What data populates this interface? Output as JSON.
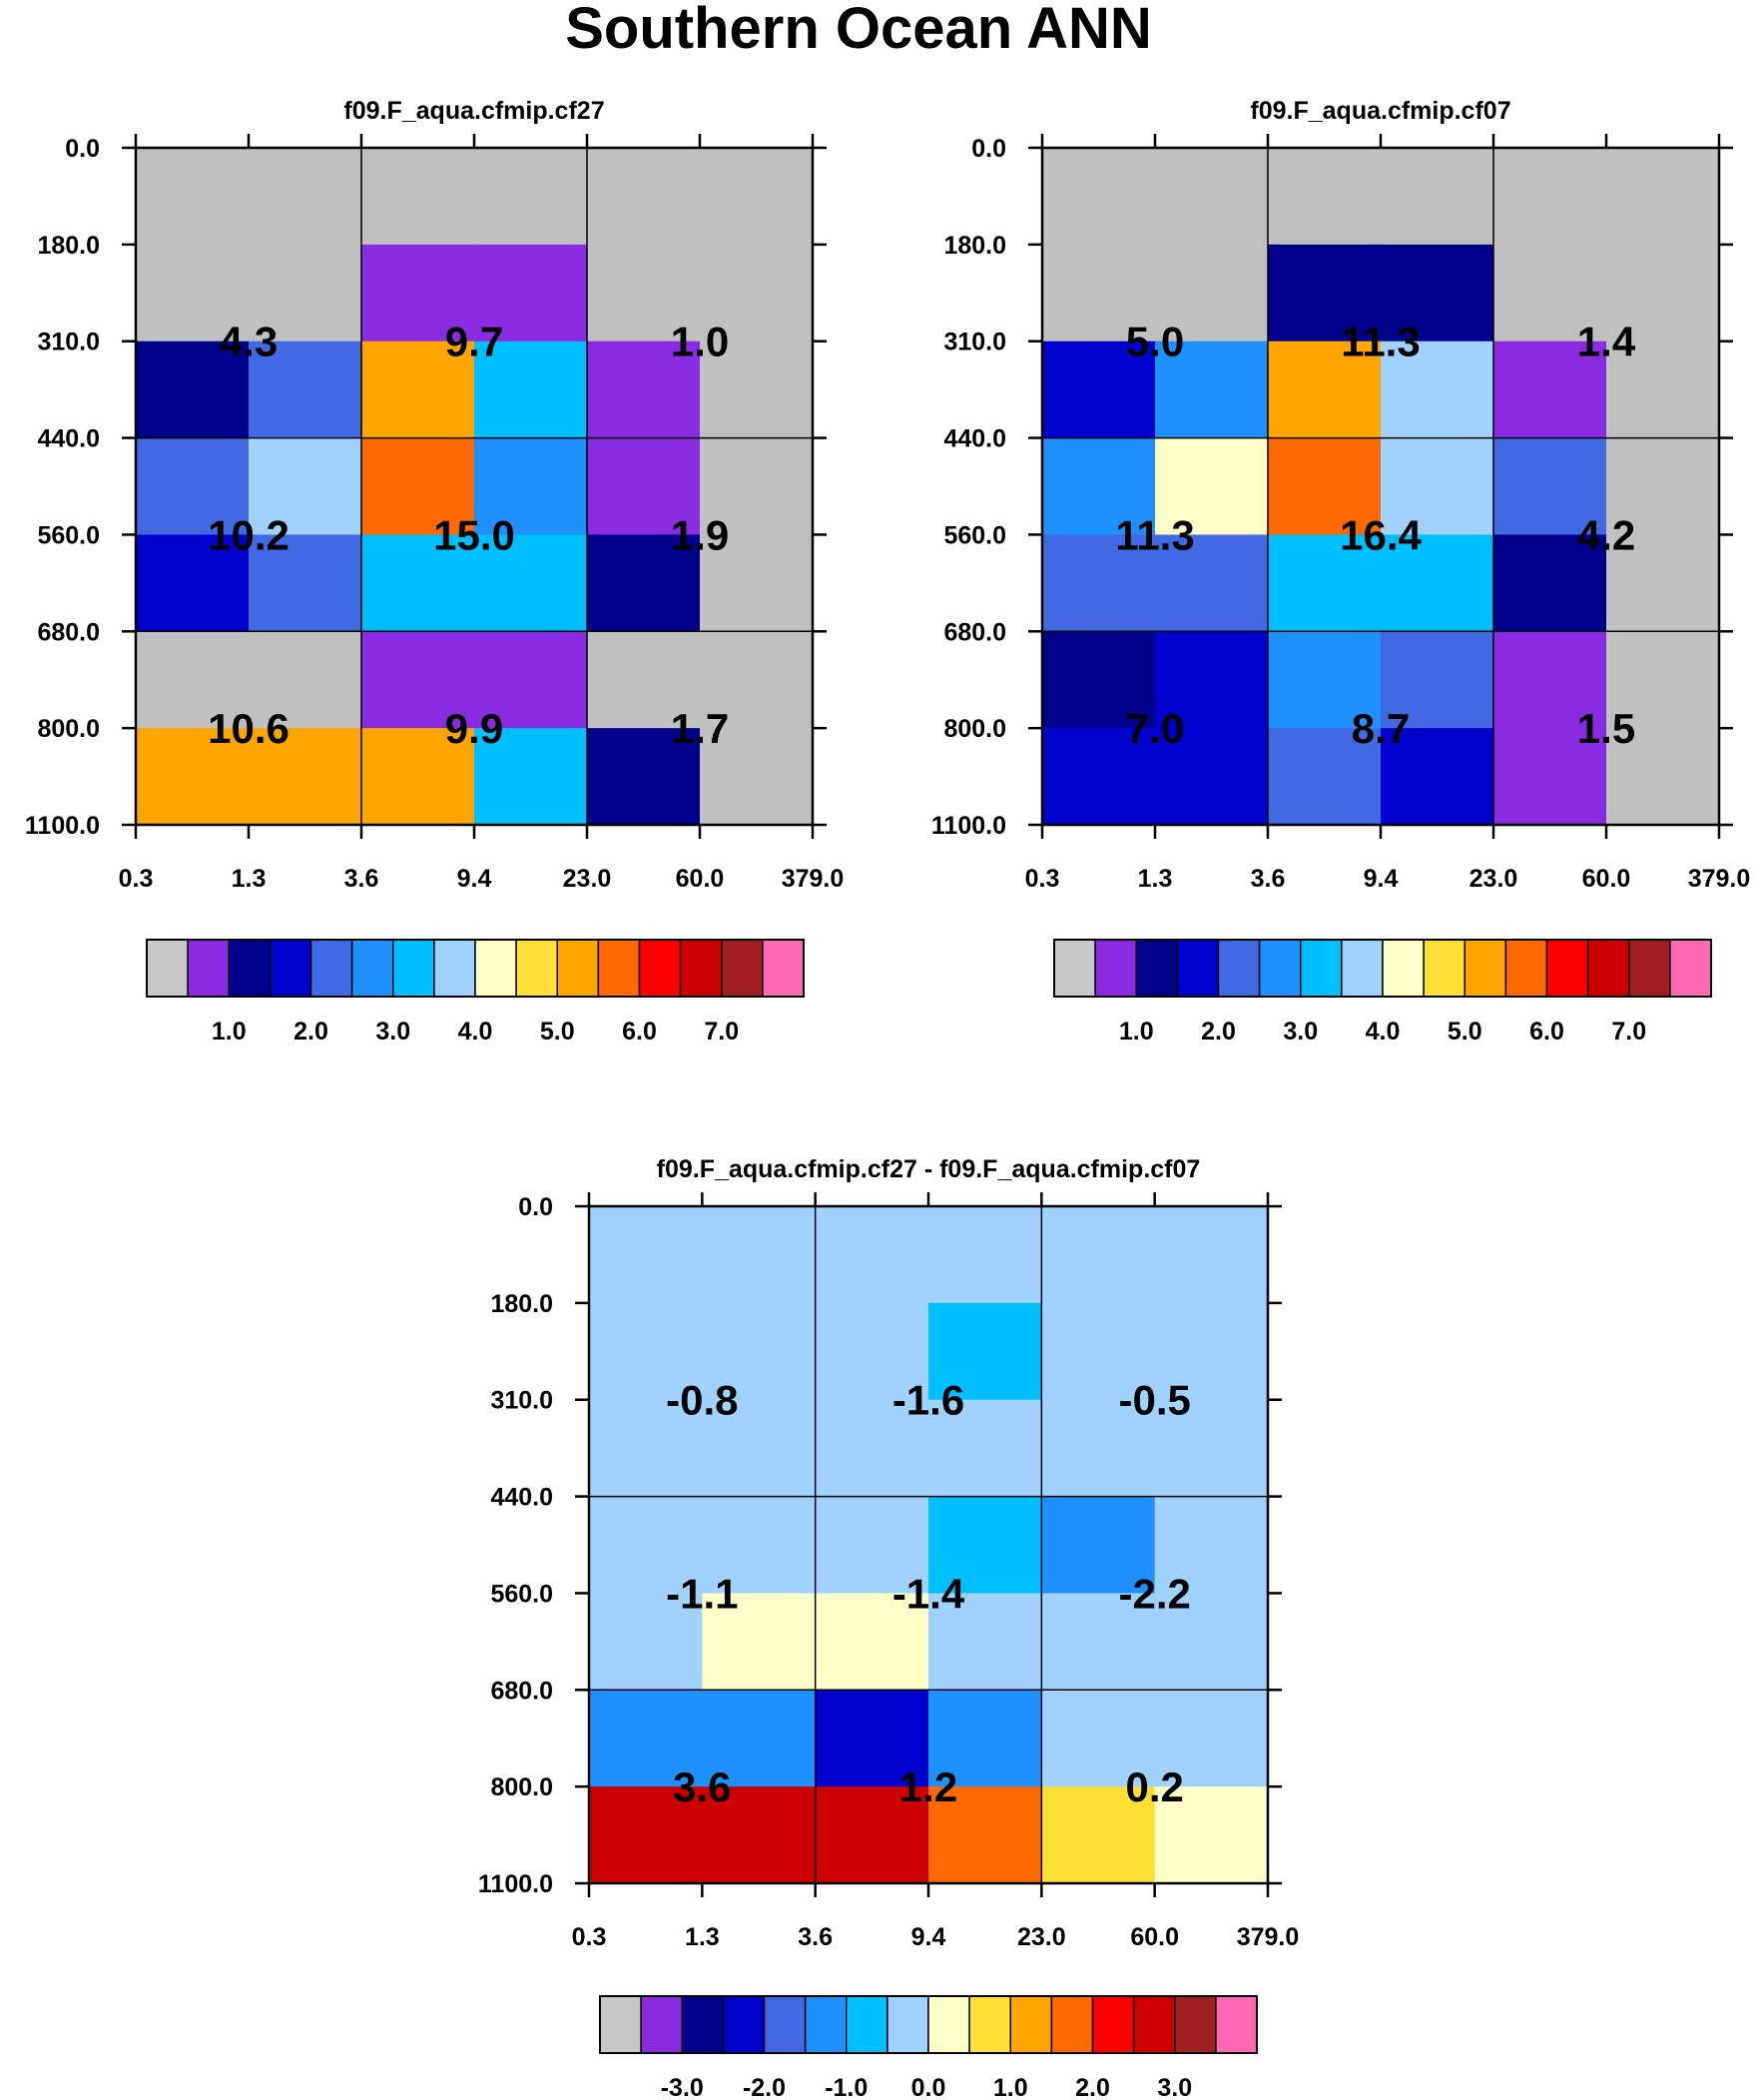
{
  "title": "Southern Ocean ANN",
  "chart_data": [
    {
      "type": "heatmap",
      "title": "f09.F_aqua.cfmip.cf27",
      "xticks": [
        "0.3",
        "1.3",
        "3.6",
        "9.4",
        "23.0",
        "60.0",
        "379.0"
      ],
      "yticks": [
        "0.0",
        "180.0",
        "310.0",
        "440.0",
        "560.0",
        "680.0",
        "800.0",
        "1100.0"
      ],
      "grid": [
        [
          "missing",
          "missing",
          "missing",
          "missing",
          "missing",
          "missing"
        ],
        [
          "missing",
          "missing",
          "c01",
          "c01",
          "missing",
          "missing"
        ],
        [
          "c02",
          "c04",
          "c10",
          "c06",
          "c01",
          "missing"
        ],
        [
          "c04",
          "c07",
          "c11",
          "c05",
          "c01",
          "missing"
        ],
        [
          "c03",
          "c04",
          "c06",
          "c06",
          "c02",
          "missing"
        ],
        [
          "missing",
          "missing",
          "c01",
          "c01",
          "missing",
          "missing"
        ],
        [
          "c10",
          "c10",
          "c10",
          "c06",
          "c02",
          "missing"
        ]
      ],
      "cell_labels": [
        [
          "4.3",
          "9.7",
          "1.0"
        ],
        [
          "10.2",
          "15.0",
          "1.9"
        ],
        [
          "10.6",
          "9.9",
          "1.7"
        ]
      ],
      "colorbar": {
        "colors": [
          "c00",
          "c01",
          "c02",
          "c03",
          "c04",
          "c05",
          "c06",
          "c07",
          "c08",
          "c09",
          "c10",
          "c11",
          "c12",
          "c13",
          "c14",
          "c15"
        ],
        "labels": [
          "1.0",
          "2.0",
          "3.0",
          "4.0",
          "5.0",
          "6.0",
          "7.0"
        ],
        "label_boundaries": [
          2,
          4,
          6,
          8,
          10,
          12,
          14
        ]
      }
    },
    {
      "type": "heatmap",
      "title": "f09.F_aqua.cfmip.cf07",
      "xticks": [
        "0.3",
        "1.3",
        "3.6",
        "9.4",
        "23.0",
        "60.0",
        "379.0"
      ],
      "yticks": [
        "0.0",
        "180.0",
        "310.0",
        "440.0",
        "560.0",
        "680.0",
        "800.0",
        "1100.0"
      ],
      "grid": [
        [
          "missing",
          "missing",
          "missing",
          "missing",
          "missing",
          "missing"
        ],
        [
          "missing",
          "missing",
          "c02",
          "c02",
          "missing",
          "missing"
        ],
        [
          "c03",
          "c05",
          "c10",
          "c07",
          "c01",
          "missing"
        ],
        [
          "c05",
          "c08",
          "c11",
          "c07",
          "c04",
          "missing"
        ],
        [
          "c04",
          "c04",
          "c06",
          "c06",
          "c02",
          "missing"
        ],
        [
          "c02",
          "c03",
          "c05",
          "c04",
          "c01",
          "missing"
        ],
        [
          "c03",
          "c03",
          "c04",
          "c03",
          "c01",
          "missing"
        ]
      ],
      "cell_labels": [
        [
          "5.0",
          "11.3",
          "1.4"
        ],
        [
          "11.3",
          "16.4",
          "4.2"
        ],
        [
          "7.0",
          "8.7",
          "1.5"
        ]
      ],
      "colorbar": {
        "colors": [
          "c00",
          "c01",
          "c02",
          "c03",
          "c04",
          "c05",
          "c06",
          "c07",
          "c08",
          "c09",
          "c10",
          "c11",
          "c12",
          "c13",
          "c14",
          "c15"
        ],
        "labels": [
          "1.0",
          "2.0",
          "3.0",
          "4.0",
          "5.0",
          "6.0",
          "7.0"
        ],
        "label_boundaries": [
          2,
          4,
          6,
          8,
          10,
          12,
          14
        ]
      }
    },
    {
      "type": "heatmap",
      "title": "f09.F_aqua.cfmip.cf27 - f09.F_aqua.cfmip.cf07",
      "xticks": [
        "0.3",
        "1.3",
        "3.6",
        "9.4",
        "23.0",
        "60.0",
        "379.0"
      ],
      "yticks": [
        "0.0",
        "180.0",
        "310.0",
        "440.0",
        "560.0",
        "680.0",
        "800.0",
        "1100.0"
      ],
      "grid": [
        [
          "c07",
          "c07",
          "c07",
          "c07",
          "c07",
          "c07"
        ],
        [
          "c07",
          "c07",
          "c07",
          "c06",
          "c07",
          "c07"
        ],
        [
          "c07",
          "c07",
          "c07",
          "c07",
          "c07",
          "c07"
        ],
        [
          "c07",
          "c07",
          "c07",
          "c06",
          "c05",
          "c07"
        ],
        [
          "c07",
          "c08",
          "c08",
          "c07",
          "c07",
          "c07"
        ],
        [
          "c05",
          "c05",
          "c03",
          "c05",
          "c07",
          "c07"
        ],
        [
          "c13",
          "c13",
          "c13",
          "c11",
          "c09",
          "c08"
        ]
      ],
      "cell_labels": [
        [
          "-0.8",
          "-1.6",
          "-0.5"
        ],
        [
          "-1.1",
          "-1.4",
          "-2.2"
        ],
        [
          "3.6",
          "1.2",
          "0.2"
        ]
      ],
      "colorbar": {
        "colors": [
          "c00",
          "c01",
          "c02",
          "c03",
          "c04",
          "c05",
          "c06",
          "c07",
          "c08",
          "c09",
          "c10",
          "c11",
          "c12",
          "c13",
          "c14",
          "c15"
        ],
        "labels": [
          "-3.0",
          "-2.0",
          "-1.0",
          "0.0",
          "1.0",
          "2.0",
          "3.0"
        ],
        "label_boundaries": [
          2,
          4,
          6,
          8,
          10,
          12,
          14
        ]
      }
    }
  ],
  "palette": {
    "missing": "#c0c0c0",
    "c00": "#c8c8c8",
    "c01": "#8a2be2",
    "c02": "#00008b",
    "c03": "#0000cd",
    "c04": "#4169e1",
    "c05": "#1e90ff",
    "c06": "#00bfff",
    "c07": "#a0d2ff",
    "c08": "#ffffc8",
    "c09": "#ffe135",
    "c10": "#ffa500",
    "c11": "#ff6a00",
    "c12": "#ff0000",
    "c13": "#cd0000",
    "c14": "#a02020",
    "c15": "#ff69b4"
  }
}
